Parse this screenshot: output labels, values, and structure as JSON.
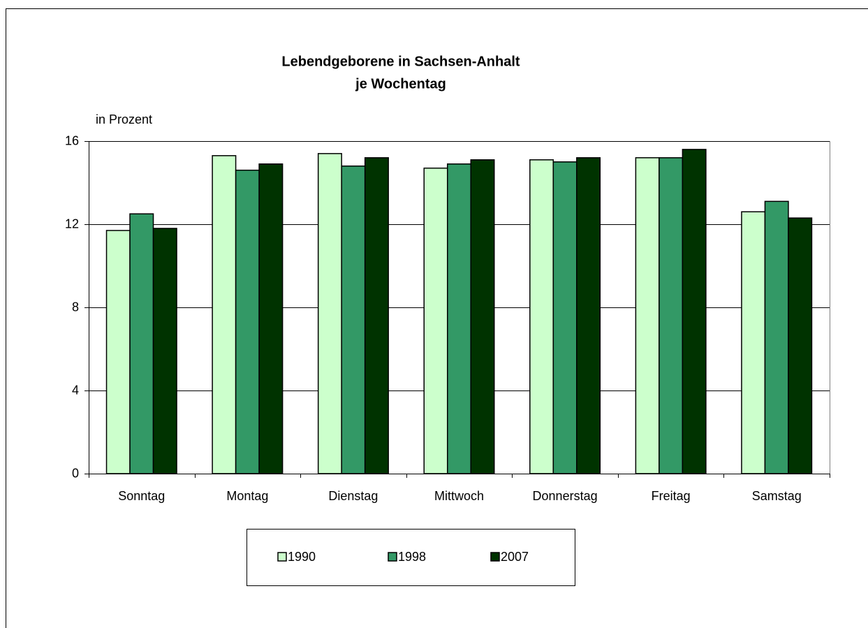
{
  "chart_data": {
    "type": "bar",
    "title": "Lebendgeborene in Sachsen-Anhalt",
    "subtitle": "je Wochentag",
    "y_label": "in Prozent",
    "categories": [
      "Sonntag",
      "Montag",
      "Dienstag",
      "Mittwoch",
      "Donnerstag",
      "Freitag",
      "Samstag"
    ],
    "series": [
      {
        "name": "1990",
        "color": "#ccffcc",
        "values": [
          11.7,
          15.3,
          15.4,
          14.7,
          15.1,
          15.2,
          12.6
        ]
      },
      {
        "name": "1998",
        "color": "#339966",
        "values": [
          12.5,
          14.6,
          14.8,
          14.9,
          15.0,
          15.2,
          13.1
        ]
      },
      {
        "name": "2007",
        "color": "#003300",
        "values": [
          11.8,
          14.9,
          15.2,
          15.1,
          15.2,
          15.6,
          12.3
        ]
      }
    ],
    "ylim": [
      0,
      16
    ],
    "yticks": [
      0,
      4,
      8,
      12,
      16
    ],
    "grid": true,
    "legend": "bottom"
  }
}
